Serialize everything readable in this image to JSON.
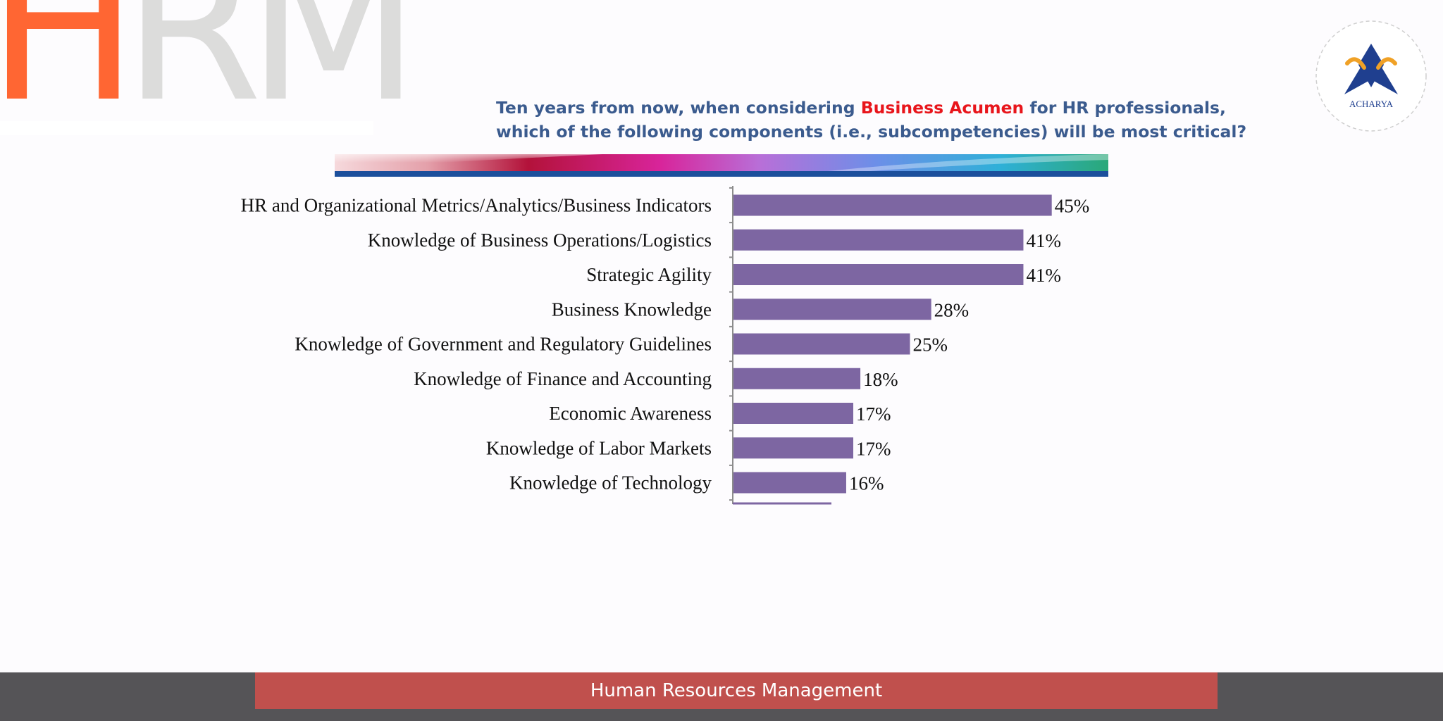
{
  "branding": {
    "wordmark_first": "H",
    "wordmark_rest": "RM",
    "logo_text": "ACHARYA",
    "accent_color": "#ff6633",
    "logo_color": "#1f3f8f",
    "logo_arc_color": "#f0a126"
  },
  "question": {
    "line1_before": "Ten years from now, when considering ",
    "line1_highlight": "Business Acumen",
    "line1_after": " for HR professionals,",
    "line2": "which of the following components (i.e., subcompetencies) will be most critical?",
    "text_color": "#3b5b8e",
    "highlight_color": "#e8151b"
  },
  "chart_data": {
    "type": "bar",
    "orientation": "horizontal",
    "categories": [
      "HR and Organizational Metrics/Analytics/Business Indicators",
      "Knowledge of Business Operations/Logistics",
      "Strategic Agility",
      "Business Knowledge",
      "Knowledge of Government and Regulatory Guidelines",
      "Knowledge of Finance and Accounting",
      "Economic Awareness",
      "Knowledge of Labor Markets",
      "Knowledge of Technology"
    ],
    "values": [
      45,
      41,
      41,
      28,
      25,
      18,
      17,
      17,
      16
    ],
    "value_labels": [
      "45%",
      "41%",
      "41%",
      "28%",
      "25%",
      "18%",
      "17%",
      "17%",
      "16%"
    ],
    "unit": "%",
    "bar_color": "#7d66a2",
    "xlim": [
      0,
      100
    ],
    "grid": false,
    "legend": "none"
  },
  "footer": {
    "label": "Human Resources Management",
    "band_color": "#555457",
    "box_color": "#c0504d"
  }
}
